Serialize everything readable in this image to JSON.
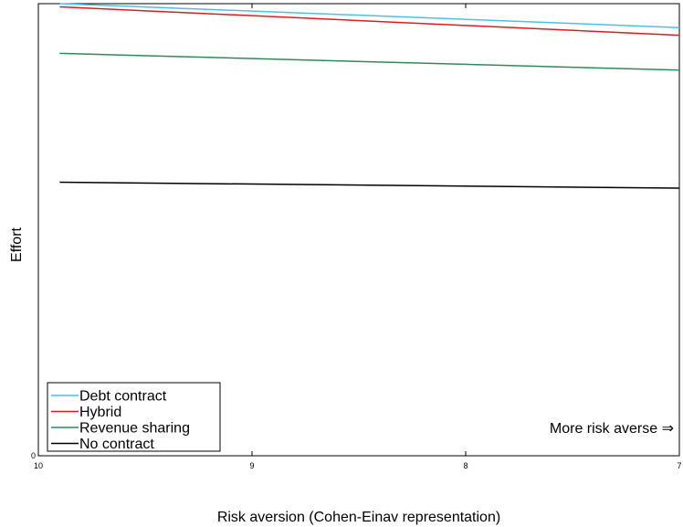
{
  "chart_data": {
    "type": "line",
    "xlabel": "Risk aversion (Cohen-Einav representation)",
    "ylabel": "Effort",
    "xlim": [
      10,
      7
    ],
    "x_reversed": true,
    "ylim": [
      0,
      1
    ],
    "xticks": [
      10,
      9,
      8,
      7
    ],
    "yticks": [
      0
    ],
    "grid": false,
    "legend_position": "bottom-left",
    "annotation": "More risk averse ⇒",
    "series": [
      {
        "name": "Debt contract",
        "color": "#4cc0e8",
        "x": [
          9.9,
          7
        ],
        "y": [
          1.0,
          0.947
        ]
      },
      {
        "name": "Hybrid",
        "color": "#e31a1c",
        "x": [
          9.9,
          7
        ],
        "y": [
          0.993,
          0.93
        ]
      },
      {
        "name": "Revenue sharing",
        "color": "#2e8b57",
        "x": [
          9.9,
          7
        ],
        "y": [
          0.89,
          0.853
        ]
      },
      {
        "name": "No contract",
        "color": "#000000",
        "x": [
          9.9,
          7
        ],
        "y": [
          0.605,
          0.592
        ]
      }
    ]
  }
}
